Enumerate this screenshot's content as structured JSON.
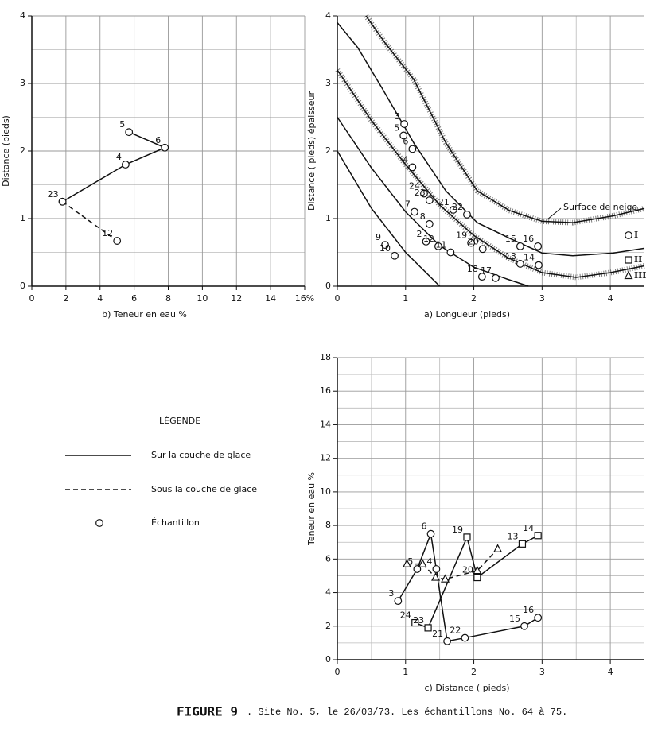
{
  "chart_data": [
    {
      "type": "line",
      "xlabel": "b)  Teneur  en  eau  %",
      "ylabel": "Distance  (pieds)",
      "xlim": [
        0,
        16
      ],
      "ylim": [
        0,
        4
      ],
      "xticks": [
        0,
        2,
        4,
        6,
        8,
        10,
        12,
        14,
        {
          "value": 16,
          "label": "16%"
        }
      ],
      "yticks": [
        0,
        1,
        2,
        3,
        4
      ],
      "yminorticks": [
        0.5,
        1.5,
        2.5,
        3.5
      ],
      "series": [
        {
          "line": "solid",
          "marker": "circle",
          "x": [
            5.7,
            7.8,
            5.5,
            1.8
          ],
          "values": [
            2.28,
            2.05,
            1.8,
            1.25
          ],
          "labels": [
            "5",
            "6",
            "4",
            "23"
          ]
        },
        {
          "line": "dashed",
          "marker": "circle",
          "x": [
            1.8,
            5.0
          ],
          "values": [
            1.25,
            0.67
          ],
          "labels": [
            null,
            "12"
          ]
        }
      ]
    },
    {
      "type": "line",
      "xlabel": "a)     Longueur     (pieds)",
      "ylabel": "Distance ( pieds) épaisseur",
      "xlim": [
        0,
        4.5
      ],
      "ylim": [
        0,
        4
      ],
      "xticks": [
        0,
        1,
        2,
        3,
        4
      ],
      "yticks": [
        0,
        1,
        2,
        3,
        4
      ],
      "xminorticks": [
        0.5,
        1.5,
        2.5,
        3.5
      ],
      "yminorticks": [
        0.5,
        1.5,
        2.5,
        3.5
      ],
      "annotation": "Surface de neige",
      "zones": [
        {
          "label": "I",
          "marker": "circle"
        },
        {
          "label": "II",
          "marker": "square"
        },
        {
          "label": "III",
          "marker": "triangle"
        }
      ],
      "series": [
        {
          "line": "hatched",
          "x": [
            0.42,
            0.7,
            1.12,
            1.59,
            2.05,
            2.52,
            3,
            3.45,
            4.04,
            4.5
          ],
          "values": [
            4,
            3.6,
            3.06,
            2.12,
            1.41,
            1.12,
            0.96,
            0.94,
            1.04,
            1.15
          ]
        },
        {
          "line": "solid",
          "x": [
            0,
            0.3,
            0.65,
            1.12,
            1.59,
            2.05,
            2.52,
            3,
            3.45,
            4.04,
            4.5
          ],
          "values": [
            3.9,
            3.53,
            2.94,
            2.12,
            1.41,
            0.94,
            0.71,
            0.49,
            0.45,
            0.49,
            0.56
          ]
        },
        {
          "line": "hatched",
          "x": [
            0,
            0.5,
            1,
            1.5,
            2,
            2.5,
            3,
            3.5,
            4,
            4.5
          ],
          "values": [
            3.2,
            2.45,
            1.8,
            1.2,
            0.75,
            0.42,
            0.2,
            0.13,
            0.2,
            0.3
          ]
        },
        {
          "line": "solid",
          "x": [
            0,
            0.5,
            1,
            1.5,
            2,
            2.5,
            2.8
          ],
          "values": [
            2.5,
            1.75,
            1.1,
            0.6,
            0.28,
            0.1,
            0
          ]
        },
        {
          "line": "solid",
          "x": [
            0,
            0.5,
            1,
            1.5
          ],
          "values": [
            2.0,
            1.15,
            0.5,
            0
          ]
        },
        {
          "marker": "circle",
          "x": [
            0.98,
            0.97,
            1.1,
            1.1,
            1.27,
            1.35,
            1.13,
            1.35,
            1.7,
            1.9,
            0.7,
            0.84,
            1.3,
            1.48,
            1.66,
            1.96,
            2.13,
            2.68,
            2.94,
            2.68,
            2.95,
            2.12,
            2.32
          ],
          "values": [
            2.4,
            2.23,
            2.03,
            1.76,
            1.37,
            1.27,
            1.1,
            0.92,
            1.13,
            1.06,
            0.61,
            0.45,
            0.66,
            0.59,
            0.5,
            0.64,
            0.55,
            0.59,
            0.59,
            0.33,
            0.31,
            0.14,
            0.12
          ],
          "labels": [
            "3",
            "5",
            "6",
            "4",
            "24",
            "23",
            "7",
            "8",
            "21",
            "22",
            "9",
            "10",
            "2",
            "12",
            "11",
            "19",
            "20",
            "15",
            "16",
            "13",
            "14",
            "18",
            "17"
          ]
        }
      ]
    },
    {
      "type": "line",
      "xlabel": "c)  Distance   ( pieds)",
      "ylabel": "Teneur  en  eau  %",
      "xlim": [
        0,
        4.5
      ],
      "ylim": [
        0,
        18
      ],
      "xticks": [
        0,
        1,
        2,
        3,
        4
      ],
      "yticks": [
        0,
        2,
        4,
        6,
        8,
        10,
        12,
        14,
        16,
        18
      ],
      "xminorticks": [
        0.5,
        1.5,
        2.5,
        3.5
      ],
      "yminorticks": [
        1,
        3,
        5,
        7,
        9,
        11,
        13,
        15,
        17
      ],
      "series": [
        {
          "line": "solid",
          "marker": "circle",
          "x": [
            0.89,
            1.17,
            1.37,
            1.45,
            1.61,
            1.87,
            2.74,
            2.94
          ],
          "values": [
            3.5,
            5.4,
            7.5,
            5.4,
            1.1,
            1.3,
            2.0,
            2.5
          ],
          "labels": [
            "3",
            "5",
            "6",
            "4",
            "21",
            "22",
            "15",
            "16"
          ]
        },
        {
          "line": "solid",
          "marker": "square",
          "x": [
            1.14,
            1.33,
            1.9,
            2.05,
            2.71,
            2.94
          ],
          "values": [
            2.2,
            1.9,
            7.3,
            4.9,
            6.9,
            7.4
          ],
          "labels": [
            "24",
            "23",
            "19",
            "20",
            "13",
            "14"
          ]
        },
        {
          "line": "dashed",
          "marker": "triangle",
          "x": [
            1.02,
            1.25,
            1.44,
            1.58,
            2.05,
            2.35
          ],
          "values": [
            5.7,
            5.7,
            4.9,
            4.8,
            5.3,
            6.6
          ]
        }
      ]
    }
  ],
  "legend": {
    "title": "LÉGENDE",
    "items": [
      {
        "label": "Sur  la  couche de glace",
        "line": "solid"
      },
      {
        "label": "Sous  la  couche de glace",
        "line": "dashed"
      },
      {
        "label": "Échantillon",
        "marker": "circle"
      }
    ]
  },
  "caption": {
    "figure": "FIGURE  9",
    "text": ". Site No. 5, le 26/03/73.  Les échantillons No. 64 à 75."
  }
}
